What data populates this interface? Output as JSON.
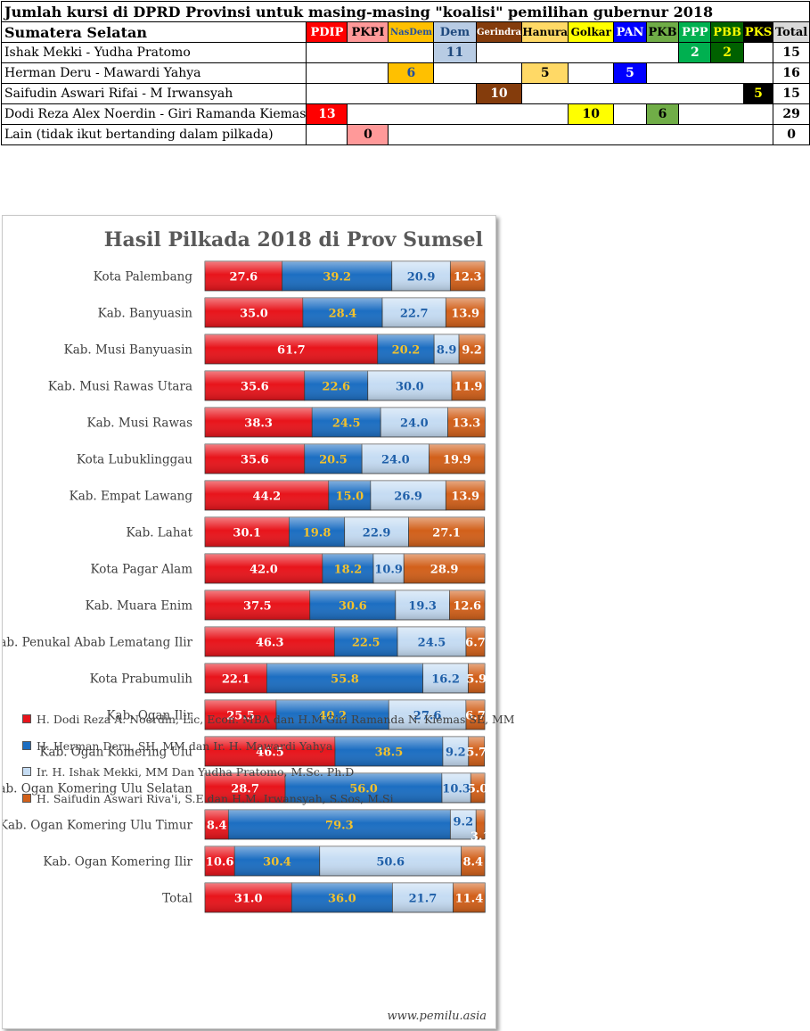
{
  "table": {
    "title": "Jumlah kursi di DPRD Provinsi untuk masing-masing \"koalisi\" pemilihan gubernur 2018",
    "region": "Sumatera Selatan",
    "parties": [
      {
        "name": "PDIP",
        "bg": "#ff0000",
        "fg": "#ffffff"
      },
      {
        "name": "PKPI",
        "bg": "#ff9999",
        "fg": "#000000"
      },
      {
        "name": "NasDem",
        "bg": "#ffc000",
        "fg": "#1f4e9f"
      },
      {
        "name": "Dem",
        "bg": "#b8cce4",
        "fg": "#1f497d"
      },
      {
        "name": "Gerindra",
        "bg": "#843c0c",
        "fg": "#ffffff"
      },
      {
        "name": "Hanura",
        "bg": "#ffd966",
        "fg": "#000000"
      },
      {
        "name": "Golkar",
        "bg": "#ffff00",
        "fg": "#000000"
      },
      {
        "name": "PAN",
        "bg": "#0000ff",
        "fg": "#ffffff"
      },
      {
        "name": "PKB",
        "bg": "#70ad47",
        "fg": "#000000"
      },
      {
        "name": "PPP",
        "bg": "#00b050",
        "fg": "#ffffff"
      },
      {
        "name": "PBB",
        "bg": "#006100",
        "fg": "#ffff00"
      },
      {
        "name": "PKS",
        "bg": "#000000",
        "fg": "#ffff00"
      }
    ],
    "total_label": "Total",
    "rows": [
      {
        "label": "Ishak Mekki - Yudha Pratomo",
        "seats": {
          "Dem": "11",
          "PPP": "2",
          "PBB": "2"
        },
        "total": "15"
      },
      {
        "label": "Herman Deru - Mawardi Yahya",
        "seats": {
          "NasDem": "6",
          "Hanura": "5",
          "PAN": "5"
        },
        "total": "16"
      },
      {
        "label": "Saifudin Aswari Rifai - M Irwansyah",
        "seats": {
          "Gerindra": "10",
          "PKS": "5"
        },
        "total": "15"
      },
      {
        "label": "Dodi Reza Alex Noerdin - Giri Ramanda Kiemas",
        "seats": {
          "PDIP": "13",
          "Golkar": "10",
          "PKB": "6"
        },
        "total": "29"
      },
      {
        "label": "Lain (tidak ikut bertanding dalam pilkada)",
        "seats": {
          "PKPI": "0"
        },
        "total": "0"
      }
    ]
  },
  "chart_data": {
    "type": "bar",
    "stacked": true,
    "orientation": "horizontal",
    "title": "Hasil Pilkada 2018 di Prov Sumsel",
    "xlim": [
      0,
      100
    ],
    "categories": [
      "Kota Palembang",
      "Kab. Banyuasin",
      "Kab. Musi Banyuasin",
      "Kab. Musi Rawas Utara",
      "Kab. Musi Rawas",
      "Kota Lubuklinggau",
      "Kab. Empat Lawang",
      "Kab. Lahat",
      "Kota Pagar Alam",
      "Kab. Muara Enim",
      "Kab. Penukal Abab Lematang Ilir",
      "Kota Prabumulih",
      "Kab. Ogan Ilir",
      "Kab. Ogan Komering Ulu",
      "Kab. Ogan Komering Ulu Selatan",
      "Kab. Ogan Komering Ulu Timur",
      "Kab. Ogan Komering Ilir",
      "Total"
    ],
    "series": [
      {
        "name": "H. Dodi Reza A. Noerdin, Lic, Econ. MBA dan H.M Giri Ramanda N. Kiemas SE, MM",
        "color": "#e8141b",
        "label_color": "#ffffff",
        "values": [
          27.6,
          35.0,
          61.7,
          35.6,
          38.3,
          35.6,
          44.2,
          30.1,
          42.0,
          37.5,
          46.3,
          22.1,
          25.5,
          46.5,
          28.7,
          8.4,
          10.6,
          31.0
        ]
      },
      {
        "name": "H. Herman Deru, SH, MM dan Ir. H. Mawardi Yahya",
        "color": "#1c6ec2",
        "label_color": "#f2c12e",
        "values": [
          39.2,
          28.4,
          20.2,
          22.6,
          24.5,
          20.5,
          15.0,
          19.8,
          18.2,
          30.6,
          22.5,
          55.8,
          40.2,
          38.5,
          56.0,
          79.3,
          30.4,
          36.0
        ]
      },
      {
        "name": "Ir. H. Ishak Mekki, MM Dan Yudha Pratomo, M.Sc. Ph.D",
        "color": "#c5dcf3",
        "label_color": "#1f5fa8",
        "values": [
          20.9,
          22.7,
          8.9,
          30.0,
          24.0,
          24.0,
          26.9,
          22.9,
          10.9,
          19.3,
          24.5,
          16.2,
          27.6,
          9.2,
          10.3,
          9.2,
          50.6,
          21.7
        ]
      },
      {
        "name": "H. Saifudin Aswari Riva'i, S.E dan H.M. Irwansyah, S.Sos, M.Si",
        "color": "#d2601a",
        "label_color": "#ffffff",
        "values": [
          12.3,
          13.9,
          9.2,
          11.9,
          13.3,
          19.9,
          13.9,
          27.1,
          28.9,
          12.6,
          6.7,
          5.9,
          6.7,
          5.7,
          5.0,
          3.1,
          8.4,
          11.4
        ]
      }
    ],
    "grid": false,
    "legend_position": "bottom"
  },
  "source": "www.pemilu.asia"
}
